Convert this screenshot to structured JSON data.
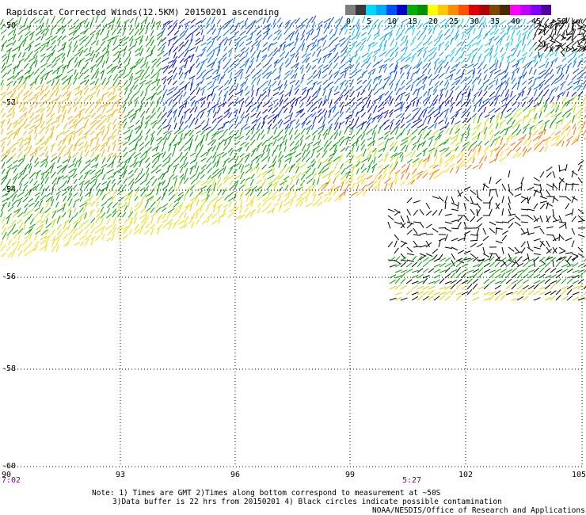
{
  "title": "Rapidscat Corrected Winds(12.5KM) 20150201 ascending",
  "colorbar": {
    "colors": [
      "#7f7f7f",
      "#3a3a3a",
      "#00d9ff",
      "#00aaff",
      "#0050ff",
      "#0000c8",
      "#00b000",
      "#009000",
      "#ffff00",
      "#ffc800",
      "#ff8c00",
      "#ff5000",
      "#e00000",
      "#b00000",
      "#7a4a00",
      "#4a2a00",
      "#ff00ff",
      "#c000ff",
      "#7f00ff",
      "#50009f"
    ],
    "labels": [
      "0",
      "5",
      "10",
      "15",
      "20",
      "25",
      "30",
      "35",
      "40",
      "45",
      ">50 knots"
    ]
  },
  "y_ticks": [
    "-50",
    "-52",
    "-54",
    "-56",
    "-58",
    "-60"
  ],
  "x_ticks": [
    "90",
    "93",
    "96",
    "99",
    "102",
    "105"
  ],
  "time_labels": [
    "7:02",
    "5:27"
  ],
  "notes": {
    "line1": "Note: 1) Times are GMT 2)Times along bottom correspond to measurement at ~50S",
    "line2": "3)Data buffer is 22 hrs from 20150201 4) Black circles indicate possible contamination",
    "line3": "NOAA/NESDIS/Office of Research and Applications"
  },
  "map": {
    "lon_range": [
      90,
      105
    ],
    "lat_range": [
      -60,
      -50
    ],
    "grid": "dotted"
  }
}
